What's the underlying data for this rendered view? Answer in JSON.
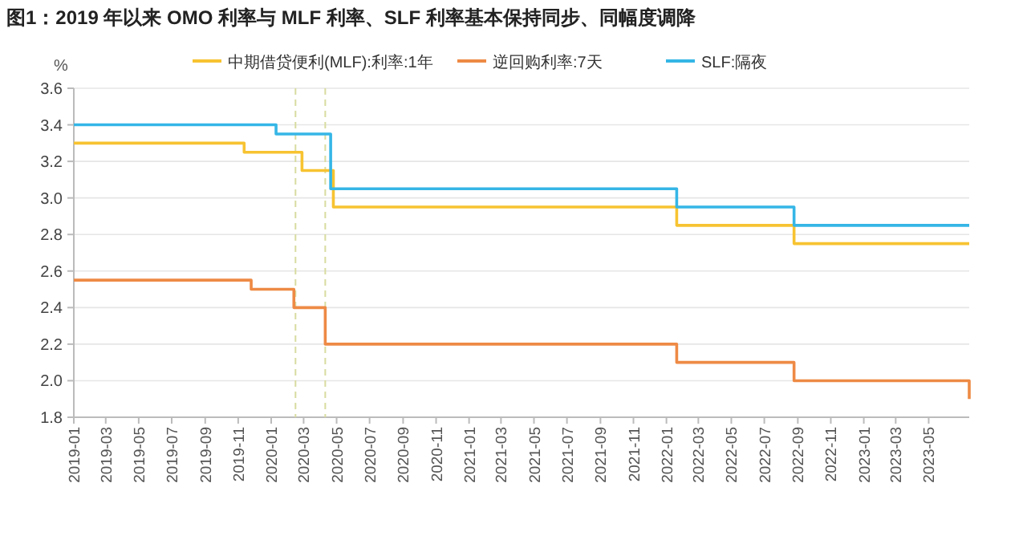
{
  "chart_data": {
    "type": "step",
    "title": "图1：2019 年以来 OMO 利率与 MLF 利率、SLF 利率基本保持同步、同幅度调降",
    "ylabel": "%",
    "series": [
      {
        "name": "中期借贷便利(MLF):利率:1年",
        "color": "#f7c331",
        "x": [
          "2019-01-01",
          "2019-11-12",
          "2020-02-27",
          "2020-04-25",
          "2022-01-20",
          "2022-08-25",
          "2023-07-15"
        ],
        "values": [
          3.3,
          3.25,
          3.15,
          2.95,
          2.85,
          2.75,
          2.75
        ]
      },
      {
        "name": "逆回购利率:7天",
        "color": "#ee8a45",
        "x": [
          "2019-01-01",
          "2019-11-25",
          "2020-02-12",
          "2020-04-10",
          "2022-01-20",
          "2022-08-25",
          "2023-07-15"
        ],
        "values": [
          2.55,
          2.5,
          2.4,
          2.2,
          2.1,
          2.0,
          1.9
        ]
      },
      {
        "name": "SLF:隔夜",
        "color": "#35b6e6",
        "x": [
          "2019-01-01",
          "2020-01-10",
          "2020-04-20",
          "2022-01-20",
          "2022-08-25",
          "2023-07-15"
        ],
        "values": [
          3.4,
          3.35,
          3.05,
          2.95,
          2.85,
          2.85
        ]
      }
    ],
    "xlim": [
      "2019-01-01",
      "2023-07-15"
    ],
    "xticks": [
      "2019-01",
      "2019-03",
      "2019-05",
      "2019-07",
      "2019-09",
      "2019-11",
      "2020-01",
      "2020-03",
      "2020-05",
      "2020-07",
      "2020-09",
      "2020-11",
      "2021-01",
      "2021-03",
      "2021-05",
      "2021-07",
      "2021-09",
      "2021-11",
      "2022-01",
      "2022-03",
      "2022-05",
      "2022-07",
      "2022-09",
      "2022-11",
      "2023-01",
      "2023-03",
      "2023-05"
    ],
    "ylim": [
      1.8,
      3.6
    ],
    "yticks": [
      1.8,
      {
        "value": 2,
        "label": "2.0"
      },
      2.2,
      2.4,
      2.6,
      2.8,
      {
        "value": 3,
        "label": "3.0"
      },
      3.2,
      3.4,
      3.6
    ],
    "ref_lines": [
      {
        "axis": "x",
        "value": "2020-02-15",
        "color": "#d8dca0",
        "line_style": "dashed"
      },
      {
        "axis": "x",
        "value": "2020-04-10",
        "color": "#d8dca0",
        "line_style": "dashed"
      }
    ],
    "grid": "y",
    "legend": "top"
  }
}
